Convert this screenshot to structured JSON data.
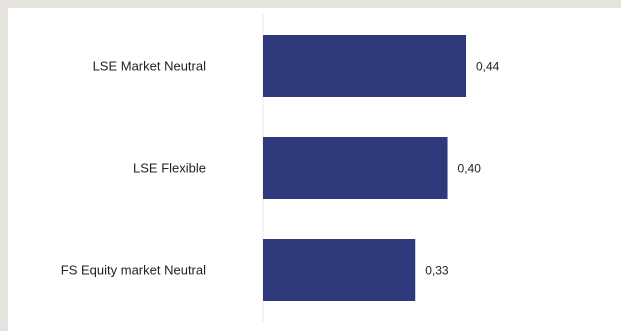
{
  "chart_data": {
    "type": "bar",
    "orientation": "horizontal",
    "categories": [
      "LSE Market Neutral",
      "LSE Flexible",
      "FS Equity market Neutral"
    ],
    "values": [
      0.44,
      0.4,
      0.33
    ],
    "value_labels": [
      "0,44",
      "0,40",
      "0,33"
    ],
    "xlim": [
      0,
      0.5
    ],
    "grid": false,
    "legend": "none",
    "title": "",
    "xlabel": "",
    "ylabel": "",
    "bar_color": "#2e3a7b"
  }
}
